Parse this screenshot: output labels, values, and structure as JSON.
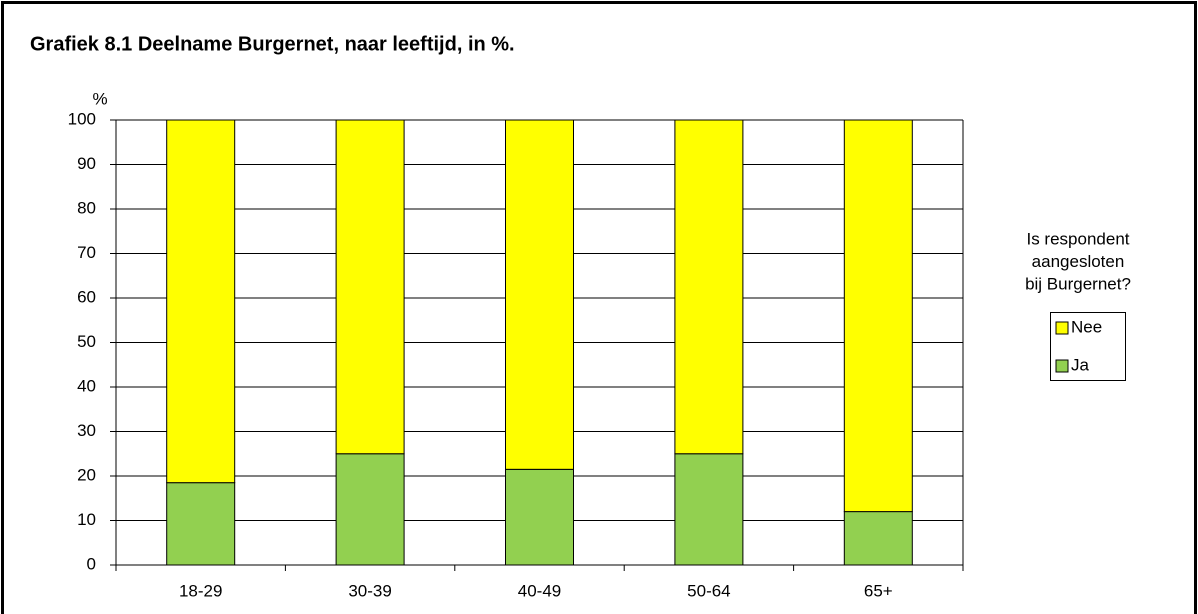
{
  "chart_data": {
    "type": "bar",
    "stacked": true,
    "title": "Grafiek 8.1  Deelname Burgernet, naar leeftijd, in %.",
    "y_label": "%",
    "categories": [
      "18-29",
      "30-39",
      "40-49",
      "50-64",
      "65+"
    ],
    "series": [
      {
        "name": "Ja",
        "color": "#92d050",
        "values": [
          18.5,
          25,
          21.5,
          25,
          12
        ]
      },
      {
        "name": "Nee",
        "color": "#ffff00",
        "values": [
          81.5,
          75,
          78.5,
          75,
          88
        ]
      }
    ],
    "ylim": [
      0,
      100
    ],
    "yticks": [
      0,
      10,
      20,
      30,
      40,
      50,
      60,
      70,
      80,
      90,
      100
    ],
    "grid": true,
    "legend_title": [
      "Is respondent",
      "aangesloten",
      "bij Burgernet?"
    ],
    "legend_position": "right"
  }
}
